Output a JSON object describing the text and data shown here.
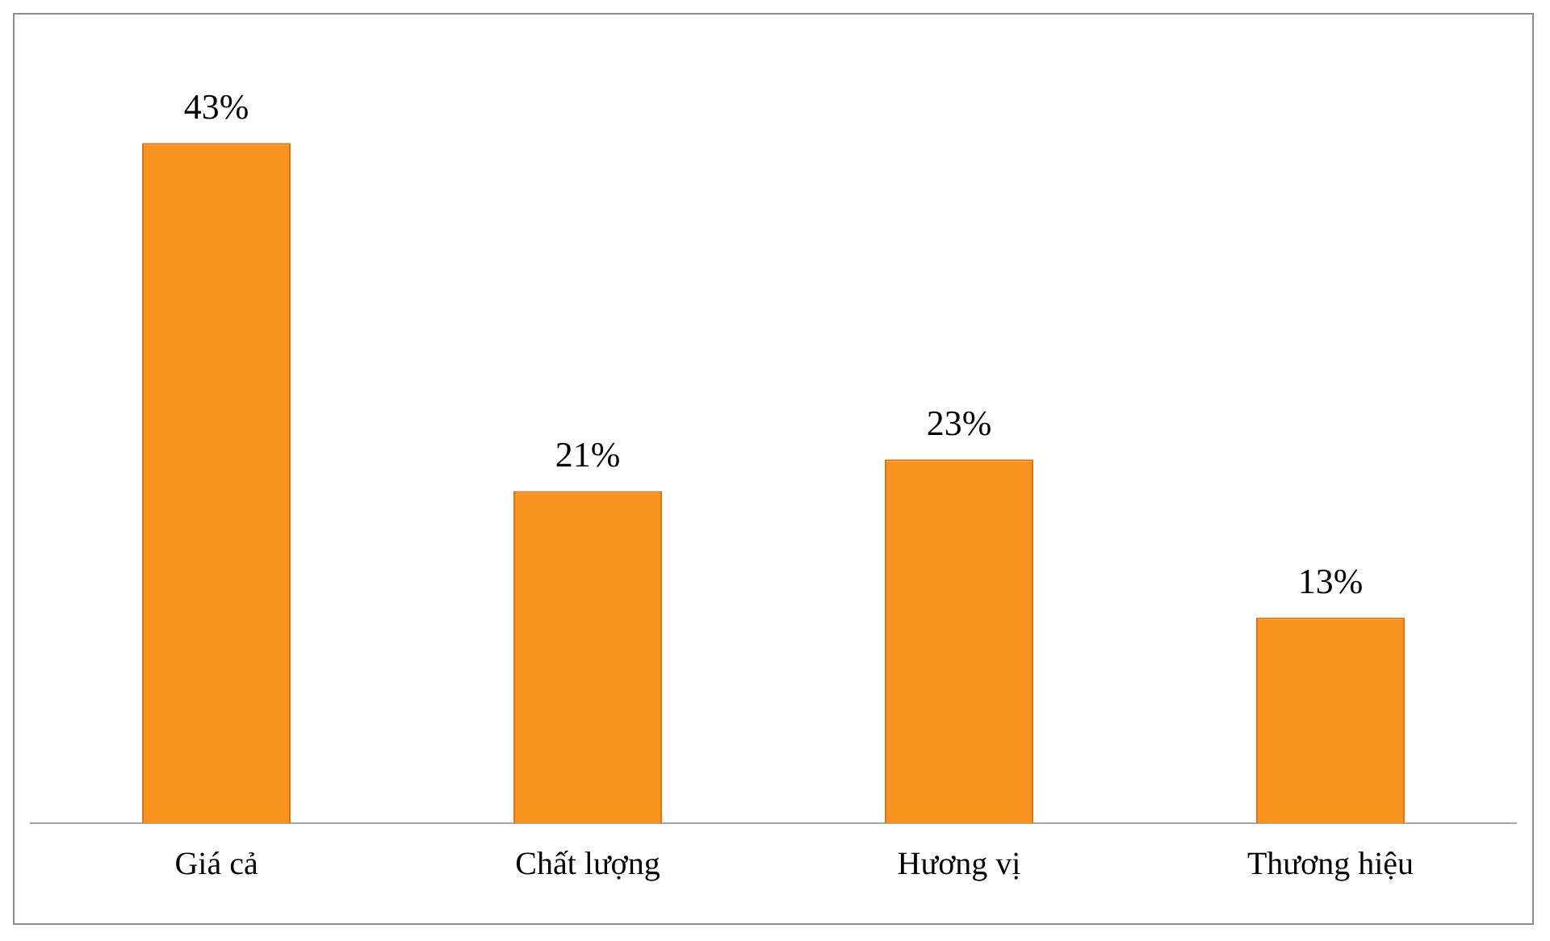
{
  "chart_data": {
    "type": "bar",
    "categories": [
      "Giá cả",
      "Chất lượng",
      "Hương vị",
      "Thương hiệu"
    ],
    "values": [
      43,
      21,
      23,
      13
    ],
    "value_labels": [
      "43%",
      "21%",
      "23%",
      "13%"
    ],
    "color": "#f7931e",
    "grid": false,
    "legend": false
  }
}
